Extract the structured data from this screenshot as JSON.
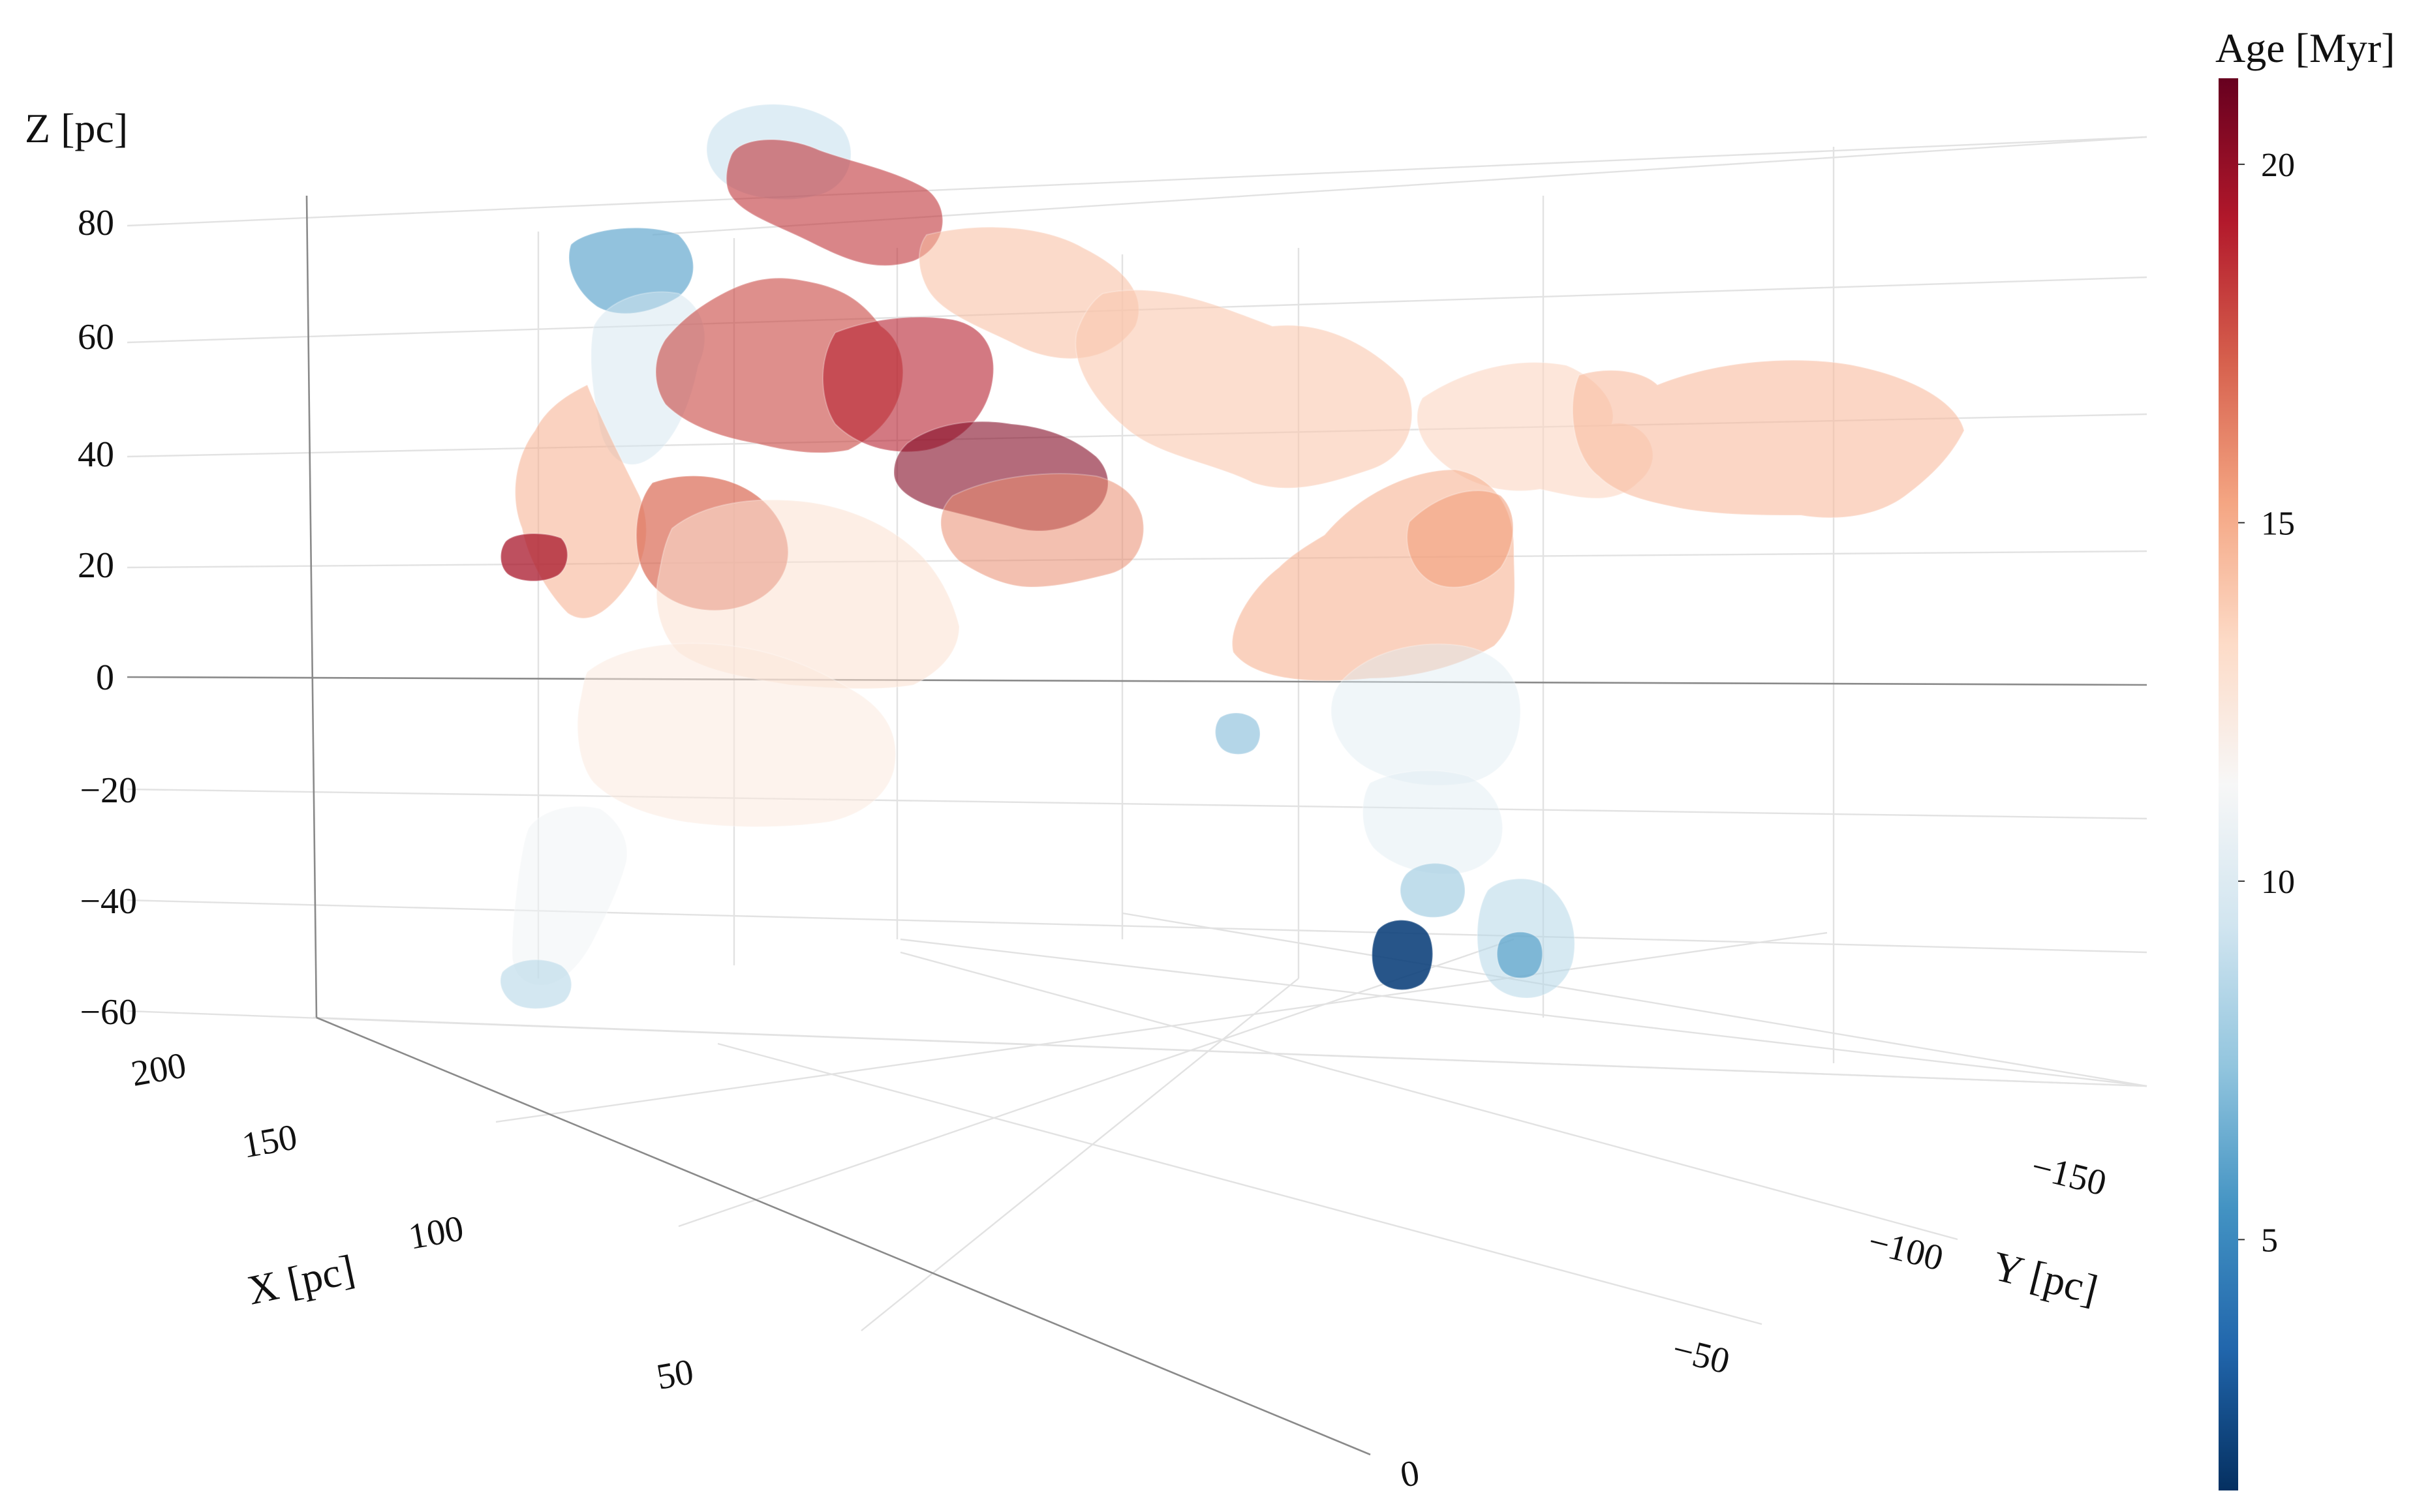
{
  "chart_data": {
    "type": "3d-isosurface",
    "title": "",
    "axes": {
      "x": {
        "label": "X [pc]",
        "ticks": [
          0,
          50,
          100,
          150,
          200
        ],
        "range": [
          0,
          220
        ]
      },
      "y": {
        "label": "Y [pc]",
        "ticks": [
          -50,
          -100,
          -150
        ],
        "range": [
          -170,
          20
        ]
      },
      "z": {
        "label": "Z [pc]",
        "ticks": [
          80,
          60,
          40,
          20,
          0,
          -20,
          -40,
          -60
        ],
        "range": [
          -65,
          85
        ]
      }
    },
    "tick_labels": {
      "x": [
        "0",
        "50",
        "100",
        "150",
        "200"
      ],
      "y": [
        "−50",
        "−100",
        "−150"
      ],
      "z": [
        "80",
        "60",
        "40",
        "20",
        "0",
        "−20",
        "−40",
        "−60"
      ]
    },
    "colorbar": {
      "title": "Age [Myr]",
      "range": [
        1.5,
        21.2
      ],
      "ticks": [
        20,
        15,
        10,
        5
      ],
      "tick_labels": [
        "20",
        "15",
        "10",
        "5"
      ],
      "colorscale": [
        "#053061",
        "#2166ac",
        "#4393c3",
        "#92c5de",
        "#d1e5f0",
        "#f7f7f7",
        "#fddbc7",
        "#f4a582",
        "#d6604d",
        "#b2182b",
        "#67001f"
      ]
    },
    "groups": [
      {
        "age": 8.5,
        "opacity": 0.45
      },
      {
        "age": 18.5,
        "opacity": 0.6
      },
      {
        "age": 6.5,
        "opacity": 0.75
      },
      {
        "age": 9.5,
        "opacity": 0.5
      },
      {
        "age": 14.5,
        "opacity": 0.55
      },
      {
        "age": 14.0,
        "opacity": 0.6
      },
      {
        "age": 13.5,
        "opacity": 0.6
      },
      {
        "age": 14.5,
        "opacity": 0.6
      },
      {
        "age": 14.8,
        "opacity": 0.6
      },
      {
        "age": 15.5,
        "opacity": 0.6
      },
      {
        "age": 18.0,
        "opacity": 0.6
      },
      {
        "age": 19.0,
        "opacity": 0.6
      },
      {
        "age": 20.5,
        "opacity": 0.6
      },
      {
        "age": 16.0,
        "opacity": 0.55
      },
      {
        "age": 15.0,
        "opacity": 0.55
      },
      {
        "age": 17.0,
        "opacity": 0.7
      },
      {
        "age": 13.0,
        "opacity": 0.55
      },
      {
        "age": 12.5,
        "opacity": 0.5
      },
      {
        "age": 11.0,
        "opacity": 0.5
      },
      {
        "age": 8.5,
        "opacity": 0.6
      },
      {
        "age": 10.0,
        "opacity": 0.45
      },
      {
        "age": 10.0,
        "opacity": 0.45
      },
      {
        "age": 8.0,
        "opacity": 0.7
      },
      {
        "age": 2.2,
        "opacity": 0.9
      },
      {
        "age": 8.5,
        "opacity": 0.55
      },
      {
        "age": 6.0,
        "opacity": 0.7
      },
      {
        "age": 7.0,
        "opacity": 0.6
      },
      {
        "age": 19.5,
        "opacity": 0.75
      }
    ]
  }
}
